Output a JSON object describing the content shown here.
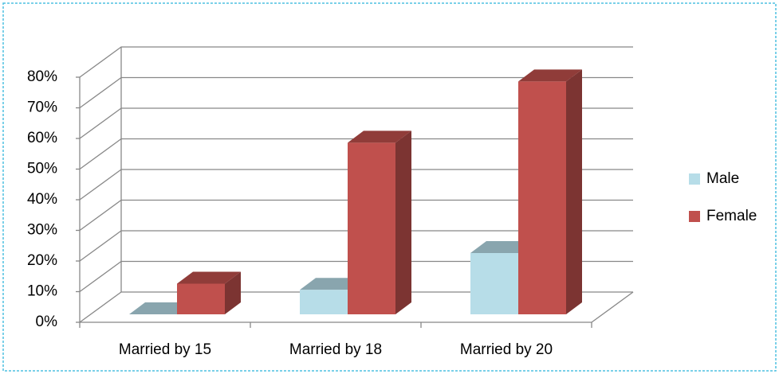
{
  "chart_data": {
    "type": "bar3d",
    "categories": [
      "Married by 15",
      "Married by 18",
      "Married by 20"
    ],
    "series": [
      {
        "name": "Male",
        "color": "#b7dde8",
        "values": [
          0,
          8,
          20
        ]
      },
      {
        "name": "Female",
        "color": "#c0504d",
        "values": [
          10,
          56,
          76
        ]
      }
    ],
    "ylim": [
      0,
      80
    ],
    "yticks": [
      {
        "value": 0,
        "label": "0%"
      },
      {
        "value": 10,
        "label": "10%"
      },
      {
        "value": 20,
        "label": "20%"
      },
      {
        "value": 30,
        "label": "30%"
      },
      {
        "value": 40,
        "label": "40%"
      },
      {
        "value": 50,
        "label": "50%"
      },
      {
        "value": 60,
        "label": "60%"
      },
      {
        "value": 70,
        "label": "70%"
      },
      {
        "value": 80,
        "label": "80%"
      }
    ],
    "grid": true,
    "legend": "right"
  }
}
